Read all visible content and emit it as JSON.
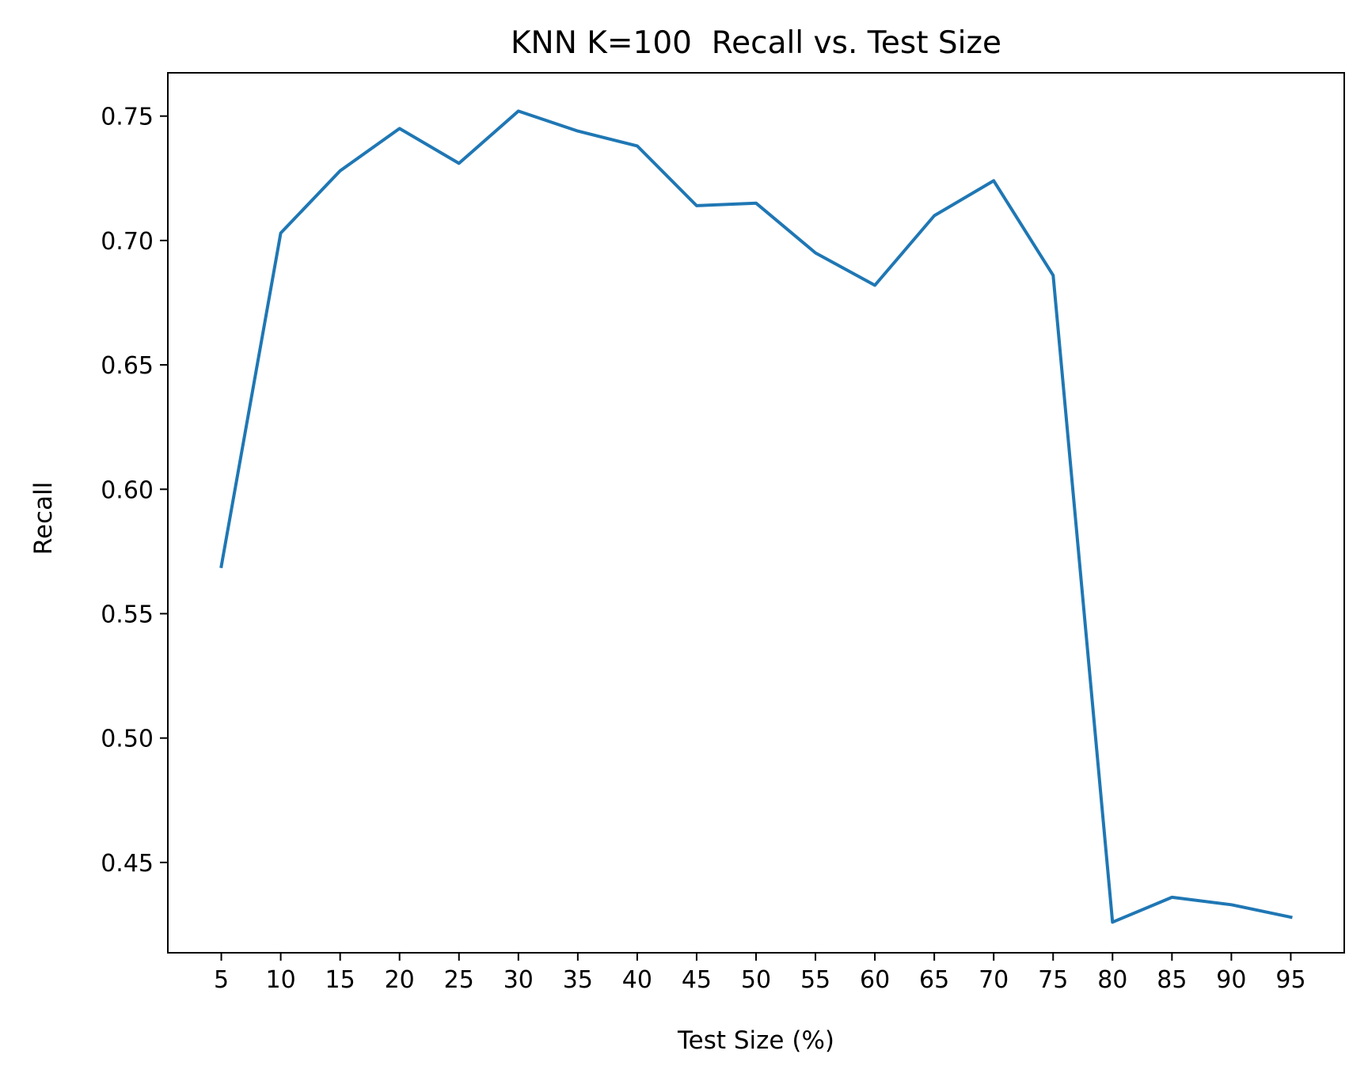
{
  "chart_data": {
    "type": "line",
    "title": "KNN K=100  Recall vs. Test Size",
    "xlabel": "Test Size (%)",
    "ylabel": "Recall",
    "x": [
      5,
      10,
      15,
      20,
      25,
      30,
      35,
      40,
      45,
      50,
      55,
      60,
      65,
      70,
      75,
      80,
      85,
      90,
      95
    ],
    "x_ticks": [
      "5",
      "10",
      "15",
      "20",
      "25",
      "30",
      "35",
      "40",
      "45",
      "50",
      "55",
      "60",
      "65",
      "70",
      "75",
      "80",
      "85",
      "90",
      "95"
    ],
    "xlim": [
      0.5,
      99.5
    ],
    "y_ticks": [
      0.45,
      0.5,
      0.55,
      0.6,
      0.65,
      0.7,
      0.75
    ],
    "ylim": [
      0.4137,
      0.7674
    ],
    "grid": false,
    "series": [
      {
        "name": "",
        "color": "#1f77b4",
        "values": [
          0.569,
          0.703,
          0.728,
          0.745,
          0.731,
          0.752,
          0.744,
          0.738,
          0.714,
          0.715,
          0.695,
          0.682,
          0.71,
          0.724,
          0.686,
          0.426,
          0.436,
          0.433,
          0.428
        ]
      }
    ]
  }
}
